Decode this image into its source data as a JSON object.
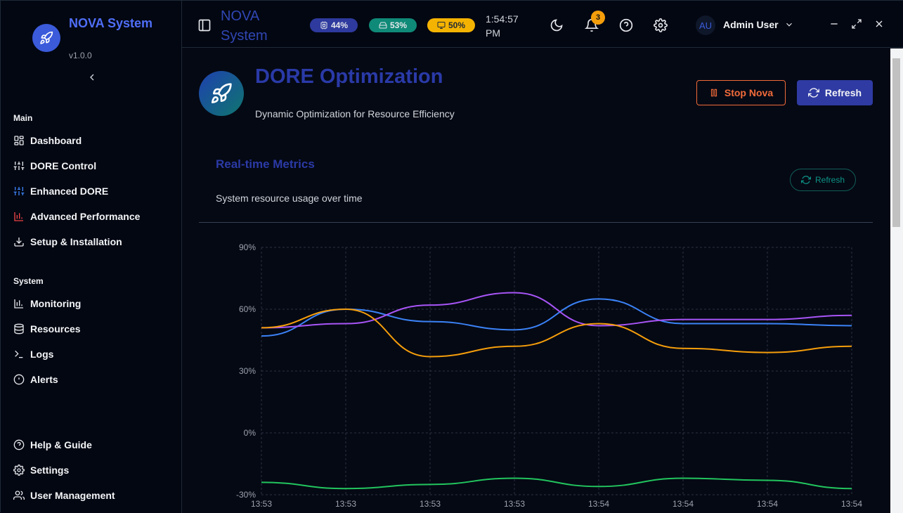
{
  "sidebar": {
    "brand": "NOVA System",
    "version": "v1.0.0",
    "main_section": "Main",
    "system_section": "System",
    "items_main": [
      {
        "label": "Dashboard",
        "icon": "grid-icon",
        "color": "#e5e7eb"
      },
      {
        "label": "DORE Control",
        "icon": "sliders-icon",
        "color": "#e5e7eb"
      },
      {
        "label": "Enhanced DORE",
        "icon": "sliders-icon",
        "color": "#3b82f6"
      },
      {
        "label": "Advanced Performance",
        "icon": "bar-chart-icon",
        "color": "#ef4444"
      },
      {
        "label": "Setup & Installation",
        "icon": "download-icon",
        "color": "#e5e7eb"
      }
    ],
    "items_system": [
      {
        "label": "Monitoring",
        "icon": "bar-chart-icon"
      },
      {
        "label": "Resources",
        "icon": "database-icon"
      },
      {
        "label": "Logs",
        "icon": "terminal-icon"
      },
      {
        "label": "Alerts",
        "icon": "alert-circle-icon"
      }
    ],
    "items_footer": [
      {
        "label": "Help & Guide",
        "icon": "help-circle-icon"
      },
      {
        "label": "Settings",
        "icon": "gear-icon"
      },
      {
        "label": "User Management",
        "icon": "users-icon"
      }
    ]
  },
  "header": {
    "title": "NOVA System",
    "cpu": "44%",
    "memory": "53%",
    "display": "50%",
    "time": "1:54:57 PM",
    "notifications": "3",
    "avatar": "AU",
    "user": "Admin User",
    "colors": {
      "cpu": "#2e3a9e",
      "memory": "#0f8a78",
      "display": "#f5b301"
    }
  },
  "page": {
    "title": "DORE Optimization",
    "subtitle": "Dynamic Optimization for Resource Efficiency",
    "stop_label": "Stop Nova",
    "refresh_label": "Refresh"
  },
  "card": {
    "title": "Real-time Metrics",
    "subtitle": "System resource usage over time",
    "refresh_label": "Refresh"
  },
  "chart_data": {
    "type": "line",
    "title": "Real-time Metrics",
    "x": [
      "13:53",
      "13:53",
      "13:53",
      "13:53",
      "13:54",
      "13:54",
      "13:54",
      "13:54"
    ],
    "ylim": [
      -30,
      90
    ],
    "yticks": [
      90,
      60,
      30,
      0,
      -30
    ],
    "ytick_labels": [
      "90%",
      "60%",
      "30%",
      "0%",
      "-30%"
    ],
    "grid": true,
    "series": [
      {
        "name": "blue",
        "color": "#3b82f6",
        "values": [
          47,
          60,
          54,
          50,
          65,
          53,
          53,
          52
        ]
      },
      {
        "name": "purple",
        "color": "#a855f7",
        "values": [
          51,
          53,
          62,
          68,
          52,
          55,
          55,
          57
        ]
      },
      {
        "name": "orange",
        "color": "#f59e0b",
        "values": [
          51,
          60,
          37,
          42,
          53,
          41,
          39,
          42
        ]
      },
      {
        "name": "green",
        "color": "#22c55e",
        "values": [
          -24,
          -27,
          -25,
          -22,
          -26,
          -22,
          -23,
          -27
        ]
      }
    ]
  }
}
